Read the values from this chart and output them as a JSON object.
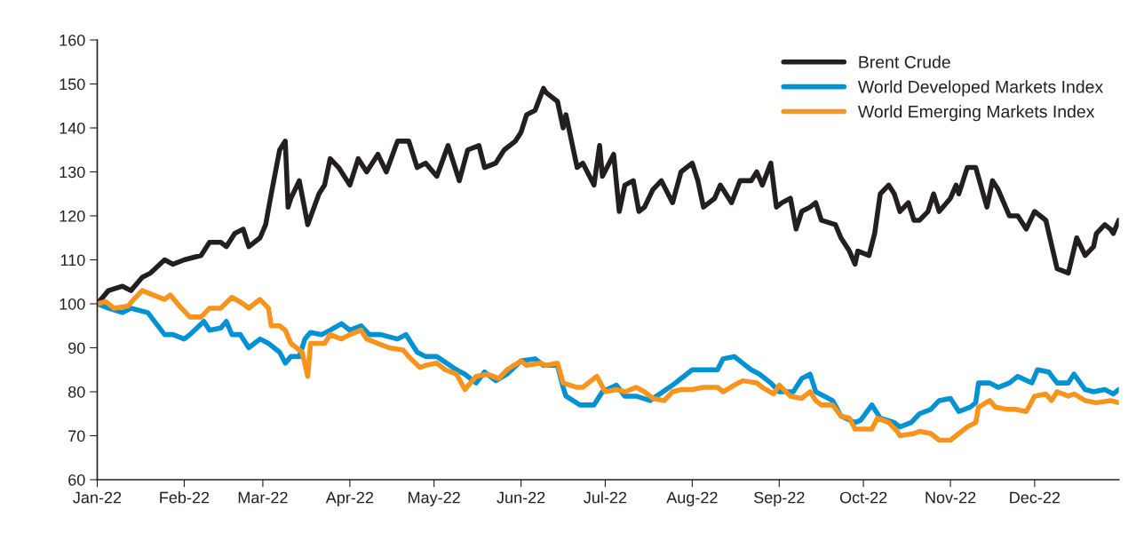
{
  "chart_data": {
    "type": "line",
    "xlim": [
      "2022-01-01",
      "2022-12-31"
    ],
    "xticks": [
      {
        "value": "2022-01-01",
        "label": "Jan-22"
      },
      {
        "value": "2022-02-01",
        "label": "Feb-22"
      },
      {
        "value": "2022-03-01",
        "label": "Mar-22"
      },
      {
        "value": "2022-04-01",
        "label": "Apr-22"
      },
      {
        "value": "2022-05-01",
        "label": "May-22"
      },
      {
        "value": "2022-06-01",
        "label": "Jun-22"
      },
      {
        "value": "2022-07-01",
        "label": "Jul-22"
      },
      {
        "value": "2022-08-01",
        "label": "Aug-22"
      },
      {
        "value": "2022-09-01",
        "label": "Sep-22"
      },
      {
        "value": "2022-10-01",
        "label": "Oct-22"
      },
      {
        "value": "2022-11-01",
        "label": "Nov-22"
      },
      {
        "value": "2022-12-01",
        "label": "Dec-22"
      }
    ],
    "ylim": [
      60,
      160
    ],
    "yticks": [
      60,
      70,
      80,
      90,
      100,
      110,
      120,
      130,
      140,
      150,
      160
    ],
    "grid": false,
    "legend": "top right",
    "marker": "none",
    "line_style": "solid",
    "series": [
      {
        "name": "Brent Crude",
        "color": "#231f20",
        "x": [
          "2022-01-01",
          "2022-01-05",
          "2022-01-10",
          "2022-01-13",
          "2022-01-17",
          "2022-01-20",
          "2022-01-25",
          "2022-01-28",
          "2022-02-01",
          "2022-02-07",
          "2022-02-10",
          "2022-02-14",
          "2022-02-16",
          "2022-02-19",
          "2022-02-22",
          "2022-02-24",
          "2022-02-28",
          "2022-03-02",
          "2022-03-04",
          "2022-03-07",
          "2022-03-09",
          "2022-03-10",
          "2022-03-11",
          "2022-03-14",
          "2022-03-17",
          "2022-03-21",
          "2022-03-23",
          "2022-03-25",
          "2022-03-28",
          "2022-04-01",
          "2022-04-04",
          "2022-04-07",
          "2022-04-11",
          "2022-04-14",
          "2022-04-18",
          "2022-04-22",
          "2022-04-25",
          "2022-04-28",
          "2022-05-02",
          "2022-05-06",
          "2022-05-10",
          "2022-05-13",
          "2022-05-17",
          "2022-05-19",
          "2022-05-23",
          "2022-05-26",
          "2022-05-30",
          "2022-06-01",
          "2022-06-03",
          "2022-06-06",
          "2022-06-09",
          "2022-06-10",
          "2022-06-14",
          "2022-06-16",
          "2022-06-17",
          "2022-06-21",
          "2022-06-23",
          "2022-06-27",
          "2022-06-29",
          "2022-06-30",
          "2022-07-04",
          "2022-07-06",
          "2022-07-08",
          "2022-07-11",
          "2022-07-13",
          "2022-07-15",
          "2022-07-18",
          "2022-07-21",
          "2022-07-25",
          "2022-07-28",
          "2022-08-01",
          "2022-08-03",
          "2022-08-05",
          "2022-08-09",
          "2022-08-11",
          "2022-08-15",
          "2022-08-18",
          "2022-08-22",
          "2022-08-24",
          "2022-08-26",
          "2022-08-29",
          "2022-08-31",
          "2022-09-02",
          "2022-09-05",
          "2022-09-07",
          "2022-09-09",
          "2022-09-12",
          "2022-09-14",
          "2022-09-16",
          "2022-09-21",
          "2022-09-23",
          "2022-09-26",
          "2022-09-28",
          "2022-09-29",
          "2022-10-03",
          "2022-10-05",
          "2022-10-07",
          "2022-10-10",
          "2022-10-12",
          "2022-10-14",
          "2022-10-17",
          "2022-10-19",
          "2022-10-21",
          "2022-10-24",
          "2022-10-26",
          "2022-10-28",
          "2022-11-01",
          "2022-11-03",
          "2022-11-04",
          "2022-11-07",
          "2022-11-10",
          "2022-11-14",
          "2022-11-16",
          "2022-11-18",
          "2022-11-22",
          "2022-11-25",
          "2022-11-28",
          "2022-12-01",
          "2022-12-05",
          "2022-12-09",
          "2022-12-13",
          "2022-12-16",
          "2022-12-19",
          "2022-12-22",
          "2022-12-23",
          "2022-12-26",
          "2022-12-28",
          "2022-12-29",
          "2022-12-31"
        ],
        "values": [
          100,
          103,
          104,
          103,
          106,
          107,
          110,
          109,
          110,
          111,
          114,
          114,
          113,
          116,
          117,
          113,
          115,
          118,
          125,
          135,
          137,
          122,
          124,
          128,
          118,
          125,
          127,
          133,
          131,
          127,
          133,
          130,
          134,
          130,
          137,
          137,
          131,
          132,
          129,
          136,
          128,
          135,
          136,
          131,
          132,
          135,
          137,
          139,
          143,
          144,
          149,
          148,
          146,
          140,
          143,
          131,
          132,
          127,
          136,
          129,
          134,
          121,
          127,
          128,
          121,
          122,
          126,
          128,
          123,
          130,
          132,
          128,
          122,
          124,
          127,
          123,
          128,
          128,
          130,
          127,
          132,
          122,
          123,
          124,
          117,
          121,
          122,
          123,
          119,
          118,
          115,
          112,
          109,
          112,
          111,
          116,
          125,
          127,
          125,
          121,
          123,
          119,
          119,
          121,
          125,
          121,
          124,
          127,
          125,
          131,
          131,
          122,
          128,
          126,
          120,
          120,
          117,
          121,
          119,
          108,
          107,
          115,
          111,
          113,
          116,
          118,
          117,
          116,
          119
        ]
      },
      {
        "name": "World Developed Markets Index",
        "color": "#0092d2",
        "x": [
          "2022-01-01",
          "2022-01-05",
          "2022-01-10",
          "2022-01-13",
          "2022-01-19",
          "2022-01-25",
          "2022-01-28",
          "2022-02-01",
          "2022-02-03",
          "2022-02-08",
          "2022-02-10",
          "2022-02-14",
          "2022-02-16",
          "2022-02-18",
          "2022-02-21",
          "2022-02-24",
          "2022-02-28",
          "2022-03-03",
          "2022-03-07",
          "2022-03-09",
          "2022-03-11",
          "2022-03-14",
          "2022-03-16",
          "2022-03-18",
          "2022-03-22",
          "2022-03-25",
          "2022-03-29",
          "2022-04-01",
          "2022-04-05",
          "2022-04-08",
          "2022-04-12",
          "2022-04-18",
          "2022-04-21",
          "2022-04-25",
          "2022-04-28",
          "2022-05-02",
          "2022-05-09",
          "2022-05-12",
          "2022-05-16",
          "2022-05-19",
          "2022-05-23",
          "2022-05-27",
          "2022-06-01",
          "2022-06-06",
          "2022-06-09",
          "2022-06-14",
          "2022-06-16",
          "2022-06-17",
          "2022-06-22",
          "2022-06-27",
          "2022-06-30",
          "2022-07-05",
          "2022-07-08",
          "2022-07-12",
          "2022-07-17",
          "2022-07-25",
          "2022-08-01",
          "2022-08-05",
          "2022-08-10",
          "2022-08-12",
          "2022-08-16",
          "2022-08-19",
          "2022-08-22",
          "2022-08-25",
          "2022-08-29",
          "2022-09-01",
          "2022-09-06",
          "2022-09-09",
          "2022-09-12",
          "2022-09-14",
          "2022-09-20",
          "2022-09-23",
          "2022-09-28",
          "2022-09-30",
          "2022-10-04",
          "2022-10-07",
          "2022-10-12",
          "2022-10-14",
          "2022-10-18",
          "2022-10-21",
          "2022-10-25",
          "2022-10-28",
          "2022-11-01",
          "2022-11-04",
          "2022-11-08",
          "2022-11-10",
          "2022-11-11",
          "2022-11-15",
          "2022-11-18",
          "2022-11-22",
          "2022-11-25",
          "2022-11-30",
          "2022-12-02",
          "2022-12-06",
          "2022-12-09",
          "2022-12-13",
          "2022-12-15",
          "2022-12-19",
          "2022-12-22",
          "2022-12-26",
          "2022-12-29",
          "2022-12-31"
        ],
        "values": [
          100,
          99,
          98,
          99,
          98,
          93,
          93,
          92,
          93,
          96,
          94,
          94.5,
          96,
          93,
          93,
          90,
          92,
          91,
          89,
          86.5,
          88,
          88,
          92,
          93.5,
          93,
          94,
          95.5,
          94,
          95,
          93,
          93,
          92,
          93,
          89,
          88,
          88,
          85,
          84,
          82,
          84.5,
          82.5,
          84,
          87,
          87.5,
          86,
          86,
          81,
          79,
          77,
          77,
          80,
          81.5,
          79,
          79,
          78,
          81.5,
          85,
          85,
          85,
          87.5,
          88,
          86.5,
          85,
          84,
          82,
          80,
          80,
          83,
          84,
          80,
          78,
          74.5,
          73,
          73.5,
          77,
          74,
          73,
          72,
          73,
          75,
          76,
          78,
          78.5,
          75.5,
          76.5,
          77.5,
          82,
          82,
          81,
          82,
          83.5,
          82,
          85,
          84.5,
          82,
          82,
          84,
          80.5,
          80,
          80.5,
          79.5,
          80.5
        ]
      },
      {
        "name": "World Emerging Markets Index",
        "color": "#f7941d",
        "x": [
          "2022-01-01",
          "2022-01-04",
          "2022-01-07",
          "2022-01-12",
          "2022-01-14",
          "2022-01-17",
          "2022-01-21",
          "2022-01-25",
          "2022-01-27",
          "2022-01-31",
          "2022-02-03",
          "2022-02-07",
          "2022-02-10",
          "2022-02-14",
          "2022-02-18",
          "2022-02-22",
          "2022-02-24",
          "2022-02-28",
          "2022-03-03",
          "2022-03-04",
          "2022-03-07",
          "2022-03-09",
          "2022-03-11",
          "2022-03-15",
          "2022-03-17",
          "2022-03-18",
          "2022-03-23",
          "2022-03-25",
          "2022-03-29",
          "2022-04-01",
          "2022-04-05",
          "2022-04-07",
          "2022-04-11",
          "2022-04-15",
          "2022-04-20",
          "2022-04-22",
          "2022-04-26",
          "2022-04-28",
          "2022-05-02",
          "2022-05-05",
          "2022-05-09",
          "2022-05-12",
          "2022-05-16",
          "2022-05-20",
          "2022-05-24",
          "2022-05-27",
          "2022-06-01",
          "2022-06-03",
          "2022-06-08",
          "2022-06-10",
          "2022-06-14",
          "2022-06-16",
          "2022-06-21",
          "2022-06-23",
          "2022-06-28",
          "2022-07-01",
          "2022-07-05",
          "2022-07-08",
          "2022-07-12",
          "2022-07-15",
          "2022-07-18",
          "2022-07-22",
          "2022-07-25",
          "2022-07-28",
          "2022-08-01",
          "2022-08-05",
          "2022-08-10",
          "2022-08-12",
          "2022-08-16",
          "2022-08-19",
          "2022-08-24",
          "2022-08-26",
          "2022-08-30",
          "2022-09-01",
          "2022-09-05",
          "2022-09-09",
          "2022-09-12",
          "2022-09-14",
          "2022-09-16",
          "2022-09-20",
          "2022-09-23",
          "2022-09-26",
          "2022-09-28",
          "2022-10-04",
          "2022-10-06",
          "2022-10-10",
          "2022-10-13",
          "2022-10-14",
          "2022-10-19",
          "2022-10-21",
          "2022-10-25",
          "2022-10-28",
          "2022-11-01",
          "2022-11-04",
          "2022-11-07",
          "2022-11-10",
          "2022-11-11",
          "2022-11-15",
          "2022-11-17",
          "2022-11-21",
          "2022-11-24",
          "2022-11-28",
          "2022-12-01",
          "2022-12-05",
          "2022-12-07",
          "2022-12-09",
          "2022-12-13",
          "2022-12-15",
          "2022-12-19",
          "2022-12-23",
          "2022-12-28",
          "2022-12-31"
        ],
        "values": [
          100,
          100.5,
          99,
          99.5,
          101,
          103,
          102,
          101,
          102,
          99,
          97,
          97,
          99,
          99,
          101.5,
          100,
          99,
          101,
          99,
          95,
          95,
          94,
          91,
          89,
          83.5,
          91,
          91,
          93,
          92,
          93,
          94,
          92,
          91,
          90,
          89.5,
          88,
          85.5,
          86,
          86.5,
          85,
          84,
          80.5,
          83.5,
          84,
          83,
          85,
          87,
          86,
          86.5,
          86,
          86.5,
          82,
          81,
          81,
          83.5,
          80,
          80.5,
          80,
          81,
          80,
          78.5,
          78,
          80,
          80.5,
          80.5,
          81,
          81,
          80,
          81.5,
          82.5,
          82,
          81,
          79.5,
          81.5,
          79,
          78.5,
          80,
          78,
          77,
          77,
          74.5,
          74,
          71.5,
          71.5,
          74,
          73,
          71,
          70,
          70.5,
          71,
          70.5,
          69,
          69,
          70.5,
          72,
          73,
          76.5,
          78,
          76.5,
          76,
          76,
          75.5,
          79,
          79.5,
          78,
          80,
          79,
          79.5,
          78,
          77.5,
          78,
          77.5
        ]
      }
    ]
  }
}
